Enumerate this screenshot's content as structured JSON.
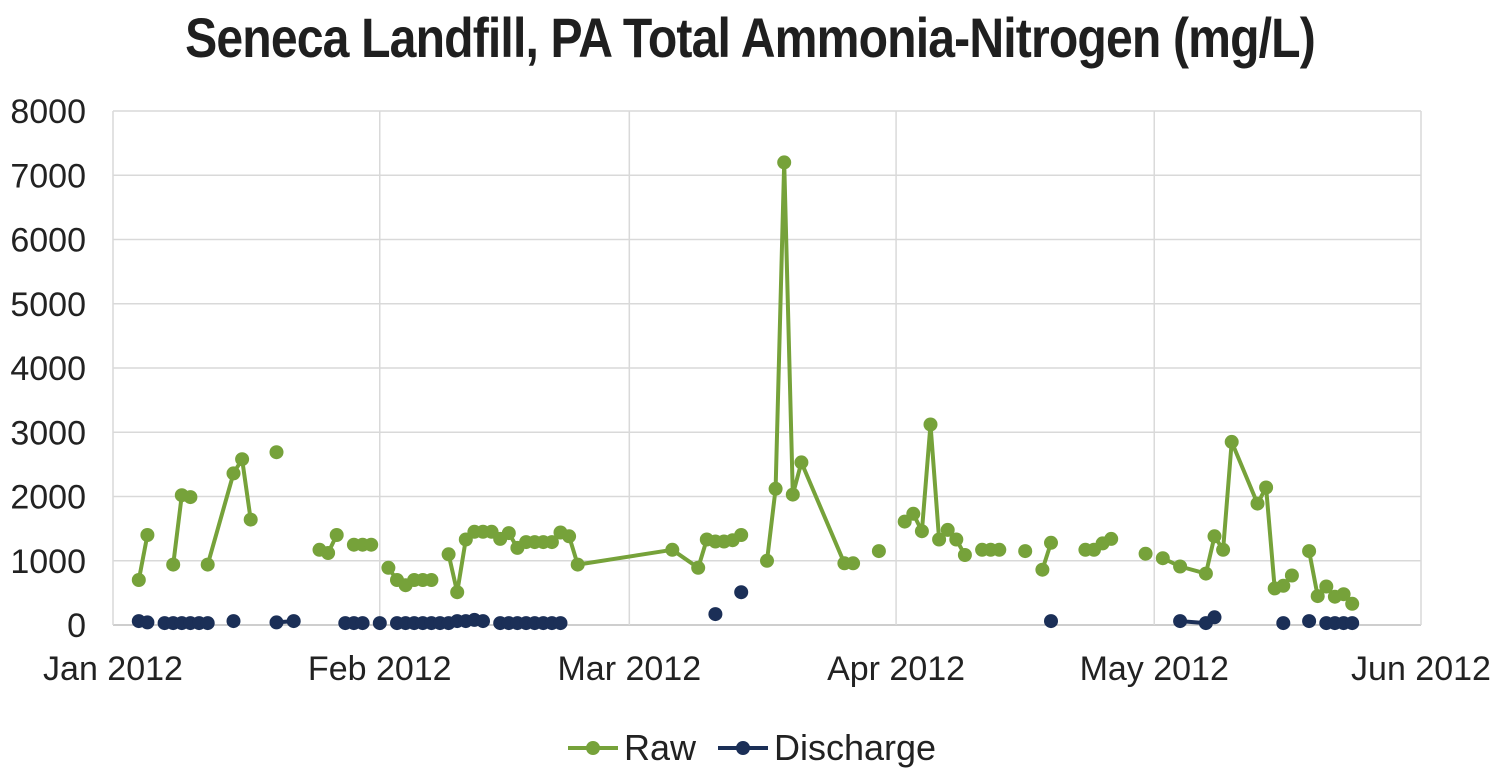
{
  "chart_data": {
    "type": "line",
    "title": "Seneca Landfill, PA Total Ammonia-Nitrogen (mg/L)",
    "xlabel": "",
    "ylabel": "",
    "x_axis": {
      "type": "date",
      "range": [
        "2012-01-01",
        "2012-06-01"
      ],
      "tick_labels": [
        "Jan 2012",
        "Feb 2012",
        "Mar 2012",
        "Apr 2012",
        "May 2012",
        "Jun 2012"
      ],
      "tick_dates": [
        "2012-01-01",
        "2012-02-01",
        "2012-03-01",
        "2012-04-01",
        "2012-05-01",
        "2012-06-01"
      ]
    },
    "y_axis": {
      "range": [
        0,
        8000
      ],
      "ticks": [
        0,
        1000,
        2000,
        3000,
        4000,
        5000,
        6000,
        7000,
        8000
      ]
    },
    "grid": true,
    "legend_position": "bottom-center",
    "series": [
      {
        "name": "Raw",
        "color": "#76a23a",
        "points": [
          [
            "2012-01-04",
            700
          ],
          [
            "2012-01-05",
            1400
          ],
          null,
          [
            "2012-01-08",
            940
          ],
          [
            "2012-01-09",
            2020
          ],
          [
            "2012-01-10",
            1990
          ],
          null,
          [
            "2012-01-12",
            940
          ],
          [
            "2012-01-15",
            2360
          ],
          [
            "2012-01-16",
            2580
          ],
          [
            "2012-01-17",
            1640
          ],
          null,
          [
            "2012-01-20",
            2690
          ],
          null,
          [
            "2012-01-25",
            1170
          ],
          [
            "2012-01-26",
            1120
          ],
          [
            "2012-01-27",
            1400
          ],
          null,
          [
            "2012-01-29",
            1250
          ],
          [
            "2012-01-30",
            1250
          ],
          [
            "2012-01-31",
            1250
          ],
          null,
          [
            "2012-02-02",
            890
          ],
          [
            "2012-02-03",
            700
          ],
          [
            "2012-02-04",
            620
          ],
          [
            "2012-02-05",
            700
          ],
          [
            "2012-02-06",
            700
          ],
          [
            "2012-02-07",
            700
          ],
          null,
          [
            "2012-02-09",
            1100
          ],
          [
            "2012-02-10",
            510
          ],
          [
            "2012-02-11",
            1330
          ],
          [
            "2012-02-12",
            1450
          ],
          [
            "2012-02-13",
            1450
          ],
          [
            "2012-02-14",
            1450
          ],
          [
            "2012-02-15",
            1340
          ],
          [
            "2012-02-16",
            1430
          ],
          [
            "2012-02-17",
            1200
          ],
          [
            "2012-02-18",
            1290
          ],
          [
            "2012-02-19",
            1290
          ],
          [
            "2012-02-20",
            1290
          ],
          [
            "2012-02-21",
            1290
          ],
          [
            "2012-02-22",
            1440
          ],
          [
            "2012-02-23",
            1380
          ],
          [
            "2012-02-24",
            940
          ],
          [
            "2012-03-06",
            1170
          ],
          [
            "2012-03-09",
            890
          ],
          [
            "2012-03-10",
            1330
          ],
          [
            "2012-03-11",
            1300
          ],
          [
            "2012-03-12",
            1300
          ],
          [
            "2012-03-13",
            1320
          ],
          [
            "2012-03-14",
            1400
          ],
          null,
          [
            "2012-03-17",
            1000
          ],
          [
            "2012-03-18",
            2120
          ],
          [
            "2012-03-19",
            7200
          ],
          [
            "2012-03-20",
            2030
          ],
          [
            "2012-03-21",
            2530
          ],
          [
            "2012-03-26",
            960
          ],
          [
            "2012-03-27",
            960
          ],
          null,
          [
            "2012-03-30",
            1150
          ],
          null,
          [
            "2012-04-02",
            1610
          ],
          [
            "2012-04-03",
            1730
          ],
          [
            "2012-04-04",
            1460
          ],
          [
            "2012-04-05",
            3120
          ],
          [
            "2012-04-06",
            1330
          ],
          [
            "2012-04-07",
            1480
          ],
          [
            "2012-04-08",
            1330
          ],
          [
            "2012-04-09",
            1090
          ],
          null,
          [
            "2012-04-11",
            1170
          ],
          [
            "2012-04-12",
            1170
          ],
          [
            "2012-04-13",
            1170
          ],
          null,
          [
            "2012-04-16",
            1150
          ],
          null,
          [
            "2012-04-18",
            860
          ],
          [
            "2012-04-19",
            1280
          ],
          null,
          [
            "2012-04-23",
            1170
          ],
          [
            "2012-04-24",
            1170
          ],
          [
            "2012-04-25",
            1270
          ],
          [
            "2012-04-26",
            1340
          ],
          null,
          [
            "2012-04-30",
            1110
          ],
          null,
          [
            "2012-05-02",
            1040
          ],
          [
            "2012-05-04",
            910
          ],
          [
            "2012-05-07",
            800
          ],
          [
            "2012-05-08",
            1380
          ],
          [
            "2012-05-09",
            1170
          ],
          [
            "2012-05-10",
            2850
          ],
          [
            "2012-05-13",
            1890
          ],
          [
            "2012-05-14",
            2140
          ],
          [
            "2012-05-15",
            570
          ],
          [
            "2012-05-16",
            610
          ],
          [
            "2012-05-17",
            770
          ],
          null,
          [
            "2012-05-19",
            1150
          ],
          [
            "2012-05-20",
            450
          ],
          [
            "2012-05-21",
            600
          ],
          [
            "2012-05-22",
            440
          ],
          [
            "2012-05-23",
            480
          ],
          [
            "2012-05-24",
            330
          ]
        ]
      },
      {
        "name": "Discharge",
        "color": "#1b2f57",
        "points": [
          [
            "2012-01-04",
            60
          ],
          [
            "2012-01-05",
            40
          ],
          null,
          [
            "2012-01-07",
            30
          ],
          [
            "2012-01-08",
            30
          ],
          [
            "2012-01-09",
            30
          ],
          [
            "2012-01-10",
            30
          ],
          [
            "2012-01-11",
            30
          ],
          [
            "2012-01-12",
            30
          ],
          null,
          [
            "2012-01-15",
            60
          ],
          null,
          [
            "2012-01-20",
            40
          ],
          [
            "2012-01-22",
            60
          ],
          null,
          [
            "2012-01-28",
            30
          ],
          [
            "2012-01-29",
            30
          ],
          [
            "2012-01-30",
            30
          ],
          null,
          [
            "2012-02-01",
            30
          ],
          null,
          [
            "2012-02-03",
            30
          ],
          [
            "2012-02-04",
            30
          ],
          [
            "2012-02-05",
            30
          ],
          [
            "2012-02-06",
            30
          ],
          [
            "2012-02-07",
            30
          ],
          [
            "2012-02-08",
            30
          ],
          [
            "2012-02-09",
            30
          ],
          [
            "2012-02-10",
            60
          ],
          [
            "2012-02-11",
            60
          ],
          [
            "2012-02-12",
            80
          ],
          [
            "2012-02-13",
            60
          ],
          null,
          [
            "2012-02-15",
            30
          ],
          [
            "2012-02-16",
            30
          ],
          [
            "2012-02-17",
            30
          ],
          [
            "2012-02-18",
            30
          ],
          [
            "2012-02-19",
            30
          ],
          [
            "2012-02-20",
            30
          ],
          [
            "2012-02-21",
            30
          ],
          [
            "2012-02-22",
            30
          ],
          null,
          [
            "2012-03-11",
            170
          ],
          null,
          [
            "2012-03-14",
            510
          ],
          null,
          [
            "2012-04-19",
            60
          ],
          null,
          [
            "2012-05-04",
            60
          ],
          [
            "2012-05-07",
            30
          ],
          [
            "2012-05-08",
            120
          ],
          null,
          [
            "2012-05-16",
            30
          ],
          null,
          [
            "2012-05-19",
            60
          ],
          null,
          [
            "2012-05-21",
            30
          ],
          [
            "2012-05-22",
            30
          ],
          [
            "2012-05-23",
            30
          ],
          [
            "2012-05-24",
            30
          ]
        ]
      }
    ]
  }
}
